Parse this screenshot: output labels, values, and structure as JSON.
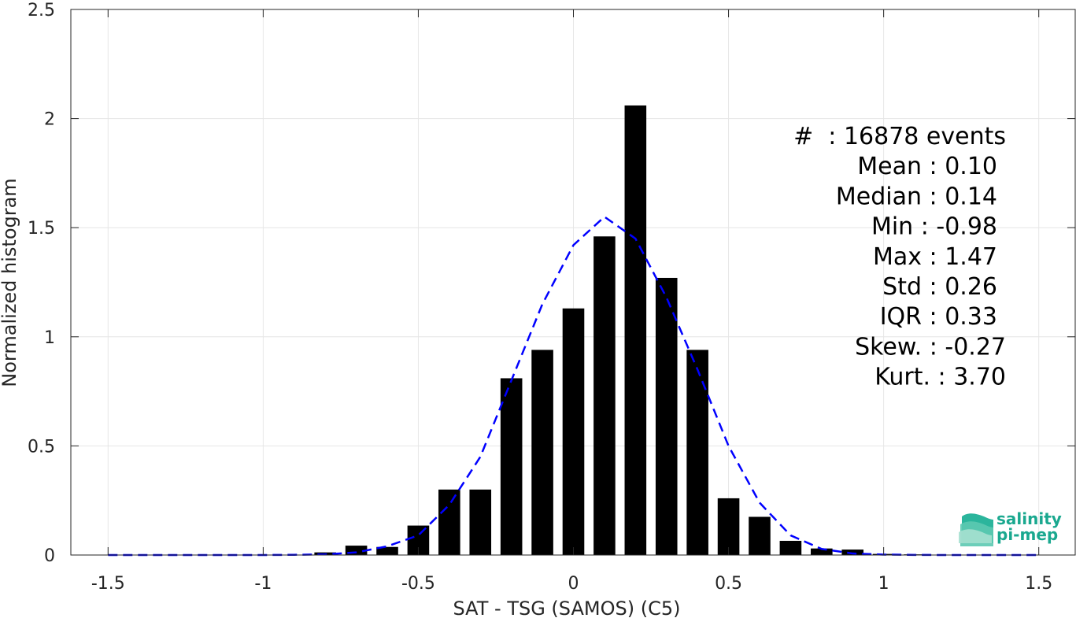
{
  "chart_data": {
    "type": "bar",
    "xlabel": "SAT - TSG (SAMOS) (C5)",
    "ylabel": "Normalized histogram",
    "xlim": [
      -1.62,
      1.62
    ],
    "ylim": [
      0,
      2.5
    ],
    "x_ticks": [
      -1.5,
      -1,
      -0.5,
      0,
      0.5,
      1,
      1.5
    ],
    "x_tick_labels": [
      "-1.5",
      "-1",
      "-0.5",
      "0",
      "0.5",
      "1",
      "1.5"
    ],
    "y_ticks": [
      0,
      0.5,
      1,
      1.5,
      2,
      2.5
    ],
    "y_tick_labels": [
      "0",
      "0.5",
      "1",
      "1.5",
      "2",
      "2.5"
    ],
    "grid": true,
    "bar_width": 0.07,
    "bars": {
      "x": [
        -1.5,
        -1.4,
        -1.3,
        -1.2,
        -1.1,
        -1.0,
        -0.9,
        -0.8,
        -0.7,
        -0.6,
        -0.5,
        -0.4,
        -0.3,
        -0.2,
        -0.1,
        0.0,
        0.1,
        0.2,
        0.3,
        0.4,
        0.5,
        0.6,
        0.7,
        0.8,
        0.9,
        1.0,
        1.1,
        1.2,
        1.3,
        1.4,
        1.5
      ],
      "values": [
        0,
        0,
        0,
        0,
        0,
        0,
        0,
        0.012,
        0.043,
        0.037,
        0.135,
        0.3,
        0.3,
        0.81,
        0.94,
        1.13,
        1.46,
        2.06,
        1.27,
        0.94,
        0.26,
        0.175,
        0.065,
        0.03,
        0.025,
        0.005,
        0.003,
        0,
        0,
        0,
        0
      ],
      "color": "#000000"
    },
    "series": [
      {
        "style": "dashed",
        "color": "#0000ff",
        "x": [
          -1.5,
          -1.4,
          -1.3,
          -1.2,
          -1.1,
          -1.0,
          -0.9,
          -0.8,
          -0.7,
          -0.6,
          -0.5,
          -0.4,
          -0.3,
          -0.2,
          -0.1,
          0.0,
          0.1,
          0.2,
          0.3,
          0.4,
          0.5,
          0.6,
          0.7,
          0.8,
          0.9,
          1.0,
          1.1,
          1.2,
          1.3,
          1.4,
          1.5
        ],
        "values": [
          0,
          0,
          0,
          0,
          0,
          0,
          0.001,
          0.003,
          0.012,
          0.04,
          0.09,
          0.23,
          0.45,
          0.8,
          1.15,
          1.42,
          1.55,
          1.45,
          1.18,
          0.85,
          0.5,
          0.24,
          0.09,
          0.028,
          0.007,
          0.002,
          0.0005,
          0,
          0,
          0,
          0
        ]
      }
    ],
    "stats": {
      "lines": [
        "#  : 16878 events",
        "Mean : 0.10",
        "Median : 0.14",
        "Min : -0.98",
        "Max : 1.47",
        "Std : 0.26",
        "IQR : 0.33",
        "Skew. : -0.27",
        "Kurt. : 3.70"
      ]
    }
  },
  "logo": {
    "line1": "salinity",
    "line2": "pi-mep",
    "color": "#1aa88f"
  }
}
